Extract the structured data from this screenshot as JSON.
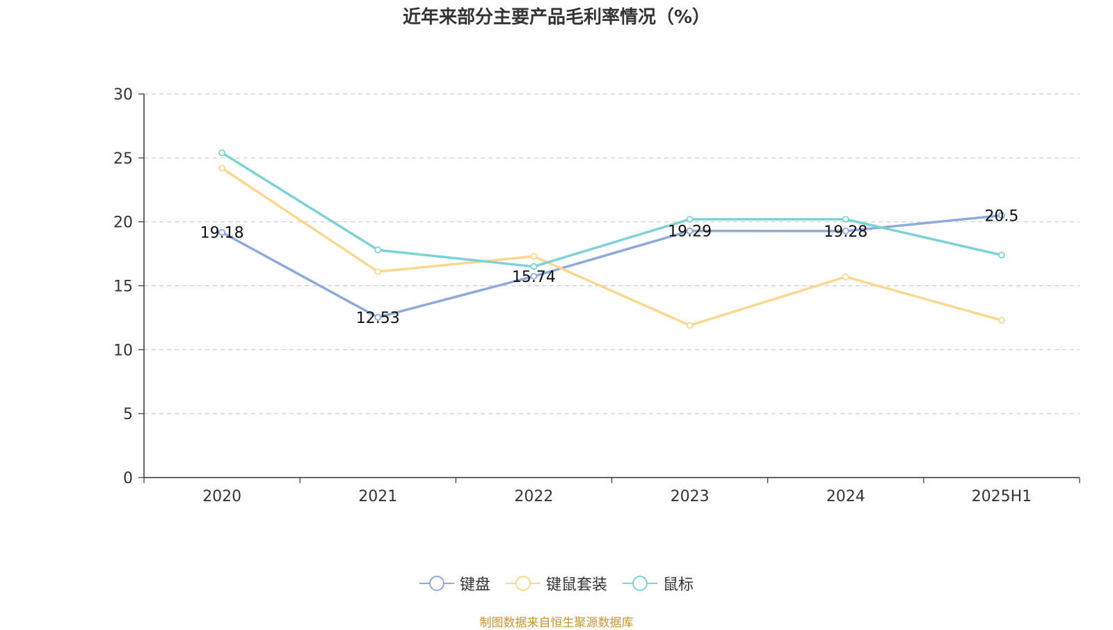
{
  "chart_data": {
    "type": "line",
    "title": "近年来部分主要产品毛利率情况（%）",
    "categories": [
      "2020",
      "2021",
      "2022",
      "2023",
      "2024",
      "2025H1"
    ],
    "ylim": [
      0,
      30
    ],
    "yticks": [
      0,
      5,
      10,
      15,
      20,
      25,
      30
    ],
    "grid": true,
    "legend_position": "bottom",
    "series": [
      {
        "name": "键盘",
        "color": "#8eaad9",
        "values": [
          19.18,
          12.53,
          15.74,
          19.29,
          19.28,
          20.5
        ],
        "labels": [
          "19.18",
          "12.53",
          "15.74",
          "19.29",
          "19.28",
          "20.5"
        ]
      },
      {
        "name": "键鼠套装",
        "color": "#fad890",
        "values": [
          24.2,
          16.1,
          17.3,
          11.9,
          15.7,
          12.3
        ]
      },
      {
        "name": "鼠标",
        "color": "#7dd3d3",
        "values": [
          25.4,
          17.8,
          16.5,
          20.2,
          20.2,
          17.4
        ]
      }
    ]
  },
  "footer": {
    "source": "制图数据来自恒生聚源数据库"
  }
}
